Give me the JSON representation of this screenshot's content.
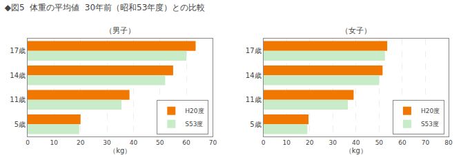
{
  "title": "◆図5  体重の平均値  30年前（昭和53年度）との比較",
  "chart_data": [
    {
      "type": "bar",
      "orientation": "horizontal",
      "title": "（男子）",
      "categories": [
        "17歳",
        "14歳",
        "11歳",
        "5歳"
      ],
      "series": [
        {
          "name": "H20度",
          "color": "#F07800",
          "values": [
            63.5,
            55.0,
            38.5,
            20.0
          ]
        },
        {
          "name": "S53度",
          "color": "#C8ECC8",
          "values": [
            60.0,
            52.0,
            35.5,
            19.5
          ]
        }
      ],
      "xlabel": "（kg）",
      "xlim": [
        0,
        70
      ],
      "xticks": [
        0,
        10,
        20,
        30,
        40,
        50,
        60,
        70
      ],
      "grid": true,
      "legend": "lower right"
    },
    {
      "type": "bar",
      "orientation": "horizontal",
      "title": "（女子）",
      "categories": [
        "17歳",
        "14歳",
        "11歳",
        "5歳"
      ],
      "series": [
        {
          "name": "H20度",
          "color": "#F07800",
          "values": [
            53.5,
            51.5,
            39.0,
            19.5
          ]
        },
        {
          "name": "S53度",
          "color": "#C8ECC8",
          "values": [
            52.5,
            50.0,
            36.5,
            19.0
          ]
        }
      ],
      "xlabel": "（kg）",
      "xlim": [
        0,
        80
      ],
      "xticks": [
        0,
        10,
        20,
        30,
        40,
        50,
        60,
        70,
        80
      ],
      "grid": true,
      "legend": "lower right"
    }
  ]
}
